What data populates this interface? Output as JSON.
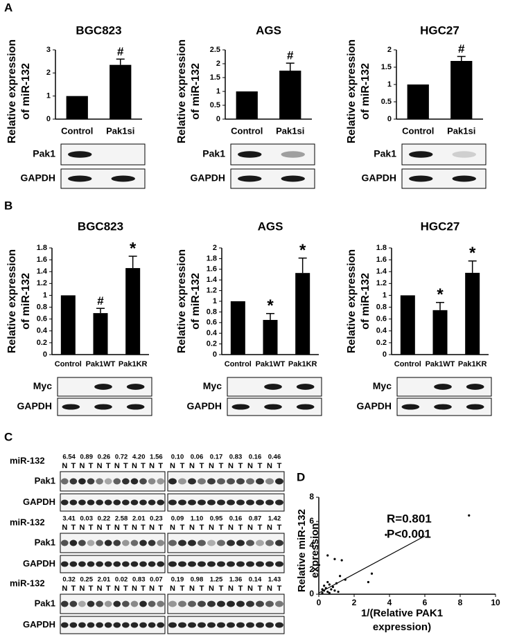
{
  "panel_labels": [
    "A",
    "B",
    "C",
    "D"
  ],
  "chart_data": [
    {
      "type": "bar",
      "title": "BGC823",
      "ylabel": [
        "Relative expression",
        "of miR-132"
      ],
      "categories": [
        "Control",
        "Pak1si"
      ],
      "values": [
        1,
        2.35
      ],
      "errors": [
        null,
        0.25
      ],
      "annotations": [
        null,
        "#"
      ],
      "color": "#000000",
      "ylim": [
        0,
        3
      ],
      "yticks": [
        0,
        1,
        2,
        3
      ]
    },
    {
      "type": "bar",
      "title": "AGS",
      "ylabel": [
        "Relative expression",
        "of miR-132"
      ],
      "categories": [
        "Control",
        "Pak1si"
      ],
      "values": [
        1,
        1.75
      ],
      "errors": [
        null,
        0.27
      ],
      "annotations": [
        null,
        "#"
      ],
      "color": "#000000",
      "ylim": [
        0,
        2.5
      ],
      "yticks": [
        0,
        0.5,
        1,
        1.5,
        2,
        2.5
      ]
    },
    {
      "type": "bar",
      "title": "HGC27",
      "ylabel": [
        "Relative expression",
        "of miR-132"
      ],
      "categories": [
        "Control",
        "Pak1si"
      ],
      "values": [
        1,
        1.68
      ],
      "errors": [
        null,
        0.13
      ],
      "annotations": [
        null,
        "#"
      ],
      "color": "#000000",
      "ylim": [
        0,
        2
      ],
      "yticks": [
        0,
        0.5,
        1,
        1.5,
        2
      ]
    },
    {
      "type": "bar",
      "title": "BGC823",
      "ylabel": [
        "Relative expression",
        "of miR-132"
      ],
      "categories": [
        "Control",
        "Pak1WT",
        "Pak1KR"
      ],
      "values": [
        1,
        0.7,
        1.46
      ],
      "errors": [
        null,
        0.08,
        0.2
      ],
      "annotations": [
        null,
        "#",
        "*"
      ],
      "color": "#000000",
      "ylim": [
        0,
        1.8
      ],
      "yticks": [
        0,
        0.2,
        0.4,
        0.6,
        0.8,
        1,
        1.2,
        1.4,
        1.6,
        1.8
      ]
    },
    {
      "type": "bar",
      "title": "AGS",
      "ylabel": [
        "Relative expression",
        "of miR-132"
      ],
      "categories": [
        "Control",
        "Pak1WT",
        "Pak1KR"
      ],
      "values": [
        1,
        0.65,
        1.53
      ],
      "errors": [
        null,
        0.12,
        0.28
      ],
      "annotations": [
        null,
        "*",
        "*"
      ],
      "color": "#000000",
      "ylim": [
        0,
        2
      ],
      "yticks": [
        0,
        0.2,
        0.4,
        0.6,
        0.8,
        1,
        1.2,
        1.4,
        1.6,
        1.8,
        2
      ]
    },
    {
      "type": "bar",
      "title": "HGC27",
      "ylabel": [
        "Relative expression",
        "of miR-132"
      ],
      "categories": [
        "Control",
        "Pak1WT",
        "Pak1KR"
      ],
      "values": [
        1,
        0.75,
        1.38
      ],
      "errors": [
        null,
        0.13,
        0.2
      ],
      "annotations": [
        null,
        "*",
        "*"
      ],
      "color": "#000000",
      "ylim": [
        0,
        1.8
      ],
      "yticks": [
        0,
        0.2,
        0.4,
        0.6,
        0.8,
        1,
        1.2,
        1.4,
        1.6,
        1.8
      ]
    },
    {
      "type": "scatter",
      "xlabel": [
        "1/(Relative PAK1",
        "expression)"
      ],
      "ylabel": [
        "Relative miR-132",
        "expression"
      ],
      "annotations": [
        "R=0.801",
        "P<0.001"
      ],
      "color": "#000000",
      "x": [
        8.5,
        3.8,
        0.9,
        0.5,
        1.3,
        3.0,
        2.8,
        1.5,
        1.2,
        0.2,
        0.3,
        0.4,
        0.5,
        0.6,
        0.7,
        0.8,
        0.3,
        0.9,
        1.0,
        0.2,
        0.5,
        0.6,
        1.1
      ],
      "y": [
        6.5,
        4.9,
        2.9,
        3.2,
        2.8,
        1.7,
        1.0,
        1.2,
        1.5,
        0.1,
        0.3,
        0.5,
        0.2,
        0.8,
        0.4,
        0.6,
        0.7,
        0.3,
        0.9,
        0.4,
        1.0,
        0.1,
        0.2
      ],
      "trendline": {
        "x": [
          0,
          6
        ],
        "y": [
          0.1,
          4.8
        ]
      },
      "xlim": [
        0,
        10
      ],
      "xticks": [
        0,
        2,
        4,
        6,
        8,
        10
      ],
      "ylim": [
        0,
        8
      ],
      "yticks": [
        0,
        2,
        4,
        6,
        8
      ]
    }
  ],
  "blots": [
    {
      "labels": [
        "Pak1",
        "GAPDH"
      ]
    },
    {
      "labels": [
        "Pak1",
        "GAPDH"
      ]
    },
    {
      "labels": [
        "Pak1",
        "GAPDH"
      ]
    },
    {
      "labels": [
        "Myc",
        "GAPDH"
      ]
    },
    {
      "labels": [
        "Myc",
        "GAPDH"
      ]
    },
    {
      "labels": [
        "Myc",
        "GAPDH"
      ]
    }
  ],
  "panel_c": {
    "lane_labels": [
      "N",
      "T"
    ],
    "groups": [
      {
        "label": "miR-132",
        "left": [
          "6.54",
          "0.89",
          "0.26",
          "0.72",
          "4.20",
          "1.56"
        ],
        "right": [
          "0.10",
          "0.06",
          "0.17",
          "0.83",
          "0.16",
          "0.46"
        ],
        "blots": [
          "Pak1",
          "GAPDH"
        ]
      },
      {
        "label": "miR-132",
        "left": [
          "3.41",
          "0.03",
          "0.22",
          "2.58",
          "2.01",
          "0.23"
        ],
        "right": [
          "0.09",
          "1.10",
          "0.95",
          "0.16",
          "0.87",
          "1.42"
        ],
        "blots": [
          "Pak1",
          "GAPDH"
        ]
      },
      {
        "label": "miR-132",
        "left": [
          "0.32",
          "0.25",
          "2.01",
          "0.02",
          "0.83",
          "0.07"
        ],
        "right": [
          "0.19",
          "0.98",
          "1.25",
          "1.36",
          "0.14",
          "1.43"
        ],
        "blots": [
          "Pak1",
          "GAPDH"
        ]
      }
    ]
  }
}
